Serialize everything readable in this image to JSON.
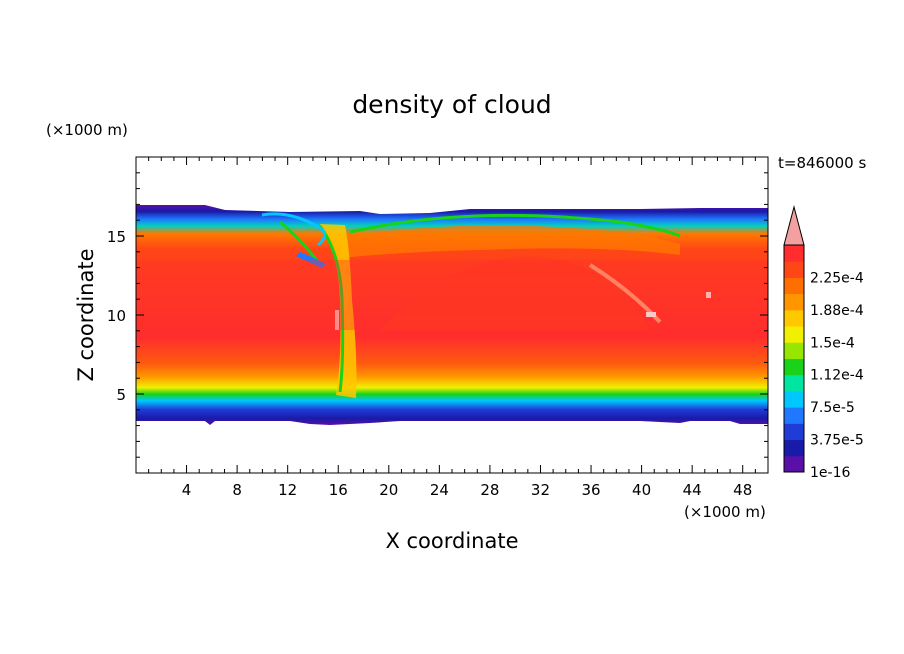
{
  "chart_data": {
    "type": "heatmap",
    "title": "density of cloud",
    "xlabel": "X coordinate",
    "ylabel": "Z coordinate",
    "x_unit_label": "(×1000 m)",
    "y_unit_label": "(×1000 m)",
    "time_label": "t=846000 s",
    "xlim": [
      0,
      50
    ],
    "ylim": [
      0,
      20
    ],
    "x_ticks": [
      4,
      8,
      12,
      16,
      20,
      24,
      28,
      32,
      36,
      40,
      44,
      48
    ],
    "y_ticks": [
      5,
      10,
      15
    ],
    "colorbar": {
      "levels": [
        "1e-16",
        "3.75e-5",
        "7.5e-5",
        "1.12e-4",
        "1.5e-4",
        "1.88e-4",
        "2.25e-4"
      ],
      "colors": [
        "#5a0fa8",
        "#1a1aa8",
        "#1f3cd6",
        "#1f78ff",
        "#00c8ff",
        "#00e6a0",
        "#19d219",
        "#96e600",
        "#f0f000",
        "#ffc800",
        "#ff9600",
        "#ff6e00",
        "#ff4616",
        "#ff2d2d"
      ],
      "extend_color": "#f5a0a0"
    },
    "field_description": "cloud layer between z≈3.5 and z≈16.5 (×1000 m); core values ≈2.25e-4 with a turbulent plume near x≈15–17"
  }
}
